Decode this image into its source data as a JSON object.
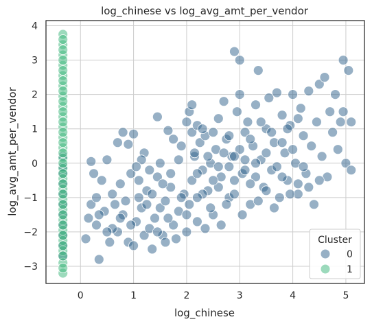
{
  "chart_data": {
    "type": "scatter",
    "title": "log_chinese vs log_avg_amt_per_vendor",
    "xlabel": "log_chinese",
    "ylabel": "log_avg_amt_per_vendor",
    "xlim": [
      -0.65,
      5.35
    ],
    "ylim": [
      -3.5,
      4.15
    ],
    "xticks": [
      "0",
      "1",
      "2",
      "3",
      "4",
      "5"
    ],
    "yticks": [
      "−3",
      "−2",
      "−1",
      "0",
      "1",
      "2",
      "3",
      "4"
    ],
    "grid": true,
    "legend": {
      "title": "Cluster",
      "placement": "lower-right",
      "entries": [
        "0",
        "1"
      ]
    },
    "series": [
      {
        "name": "0",
        "color": "#30618c",
        "points": [
          [
            -0.33,
            -0.3
          ],
          [
            -0.33,
            -0.6
          ],
          [
            -0.33,
            -0.9
          ],
          [
            -0.33,
            -1.2
          ],
          [
            -0.33,
            -1.5
          ],
          [
            -0.33,
            -1.8
          ],
          [
            -0.33,
            -2.1
          ],
          [
            -0.33,
            -2.4
          ],
          [
            -0.33,
            -2.7
          ],
          [
            -0.33,
            -0.1
          ],
          [
            -0.33,
            0.2
          ],
          [
            0.1,
            -2.2
          ],
          [
            0.2,
            -1.2
          ],
          [
            0.3,
            -1.8
          ],
          [
            0.35,
            -2.8
          ],
          [
            0.55,
            -2.3
          ],
          [
            0.7,
            -2.0
          ],
          [
            0.8,
            -1.5
          ],
          [
            0.9,
            -2.3
          ],
          [
            1.0,
            -2.4
          ],
          [
            1.1,
            -1.0
          ],
          [
            1.2,
            -2.1
          ],
          [
            1.3,
            -1.9
          ],
          [
            1.35,
            -2.5
          ],
          [
            1.5,
            -1.3
          ],
          [
            0.3,
            -1.0
          ],
          [
            0.45,
            -1.4
          ],
          [
            0.6,
            -0.9
          ],
          [
            0.75,
            -0.6
          ],
          [
            0.95,
            -0.3
          ],
          [
            1.05,
            -1.7
          ],
          [
            1.25,
            -0.8
          ],
          [
            1.4,
            -1.6
          ],
          [
            1.6,
            -1.1
          ],
          [
            1.75,
            -1.8
          ],
          [
            0.25,
            -0.3
          ],
          [
            0.2,
            0.05
          ],
          [
            0.5,
            0.1
          ],
          [
            0.7,
            0.6
          ],
          [
            0.9,
            0.55
          ],
          [
            1.0,
            0.85
          ],
          [
            0.8,
            0.9
          ],
          [
            1.2,
            0.3
          ],
          [
            0.4,
            -0.5
          ],
          [
            0.6,
            -1.9
          ],
          [
            1.15,
            -1.3
          ],
          [
            1.45,
            -0.4
          ],
          [
            1.55,
            -2.1
          ],
          [
            1.7,
            -0.7
          ],
          [
            1.85,
            -1.4
          ],
          [
            1.95,
            -0.9
          ],
          [
            2.0,
            -2.0
          ],
          [
            2.05,
            -1.2
          ],
          [
            2.1,
            -0.5
          ],
          [
            2.15,
            0.2
          ],
          [
            2.2,
            -1.7
          ],
          [
            1.45,
            1.35
          ],
          [
            1.65,
            0.95
          ],
          [
            1.75,
            0.7
          ],
          [
            1.85,
            0.1
          ],
          [
            1.9,
            0.5
          ],
          [
            2.0,
            1.2
          ],
          [
            2.05,
            1.5
          ],
          [
            2.1,
            1.7
          ],
          [
            2.1,
            0.9
          ],
          [
            2.15,
            0.3
          ],
          [
            2.2,
            1.1
          ],
          [
            2.25,
            0.6
          ],
          [
            2.3,
            -0.2
          ],
          [
            2.35,
            0.8
          ],
          [
            2.4,
            -0.8
          ],
          [
            2.45,
            0.0
          ],
          [
            2.5,
            -1.5
          ],
          [
            2.55,
            0.4
          ],
          [
            2.6,
            1.3
          ],
          [
            2.65,
            -0.4
          ],
          [
            2.7,
            1.8
          ],
          [
            2.75,
            0.7
          ],
          [
            2.8,
            -1.0
          ],
          [
            2.85,
            0.2
          ],
          [
            2.9,
            3.25
          ],
          [
            2.95,
            1.5
          ],
          [
            3.0,
            3.0
          ],
          [
            3.0,
            2.0
          ],
          [
            3.05,
            -0.3
          ],
          [
            3.1,
            0.9
          ],
          [
            3.15,
            1.2
          ],
          [
            3.2,
            -1.2
          ],
          [
            3.25,
            0.5
          ],
          [
            3.3,
            1.7
          ],
          [
            3.35,
            2.7
          ],
          [
            3.4,
            0.1
          ],
          [
            3.45,
            -0.7
          ],
          [
            3.5,
            1.0
          ],
          [
            3.55,
            1.9
          ],
          [
            3.6,
            -0.2
          ],
          [
            3.65,
            0.6
          ],
          [
            3.7,
            2.05
          ],
          [
            3.75,
            -1.0
          ],
          [
            3.8,
            1.4
          ],
          [
            3.85,
            0.3
          ],
          [
            3.9,
            -0.5
          ],
          [
            3.95,
            1.1
          ],
          [
            4.0,
            2.0
          ],
          [
            4.05,
            0.0
          ],
          [
            4.1,
            -0.9
          ],
          [
            4.15,
            1.6
          ],
          [
            4.2,
            0.8
          ],
          [
            4.25,
            -0.3
          ],
          [
            4.3,
            2.1
          ],
          [
            4.35,
            0.5
          ],
          [
            4.4,
            -1.2
          ],
          [
            4.45,
            1.2
          ],
          [
            4.5,
            2.3
          ],
          [
            4.55,
            0.2
          ],
          [
            4.6,
            2.5
          ],
          [
            4.65,
            -0.4
          ],
          [
            4.7,
            1.5
          ],
          [
            4.75,
            0.9
          ],
          [
            4.8,
            2.0
          ],
          [
            4.85,
            0.4
          ],
          [
            4.9,
            1.2
          ],
          [
            4.95,
            3.0
          ],
          [
            5.0,
            0.0
          ],
          [
            5.05,
            2.7
          ],
          [
            5.1,
            1.2
          ],
          [
            5.1,
            -0.2
          ],
          [
            4.95,
            1.5
          ],
          [
            2.3,
            1.0
          ],
          [
            2.4,
            0.2
          ],
          [
            2.5,
            0.9
          ],
          [
            2.6,
            -0.1
          ],
          [
            2.7,
            0.3
          ],
          [
            2.8,
            0.8
          ],
          [
            2.9,
            -0.5
          ],
          [
            3.0,
            0.4
          ],
          [
            3.1,
            0.1
          ],
          [
            3.2,
            0.7
          ],
          [
            3.3,
            -0.4
          ],
          [
            3.4,
            1.2
          ],
          [
            3.5,
            0.3
          ],
          [
            3.6,
            0.9
          ],
          [
            3.7,
            -0.1
          ],
          [
            3.8,
            0.6
          ],
          [
            3.9,
            1.0
          ],
          [
            4.0,
            0.4
          ],
          [
            4.1,
            1.3
          ],
          [
            4.2,
            -0.1
          ],
          [
            2.2,
            -0.3
          ],
          [
            2.3,
            -0.9
          ],
          [
            2.45,
            -1.3
          ],
          [
            2.6,
            -0.7
          ],
          [
            2.75,
            -1.2
          ],
          [
            2.9,
            -0.9
          ],
          [
            3.05,
            -1.5
          ],
          [
            3.2,
            -0.6
          ],
          [
            3.35,
            -1.1
          ],
          [
            3.5,
            -0.8
          ],
          [
            3.65,
            -1.3
          ],
          [
            3.8,
            -0.4
          ],
          [
            3.95,
            -0.9
          ],
          [
            4.1,
            -0.6
          ],
          [
            4.3,
            -0.7
          ],
          [
            4.5,
            -0.5
          ],
          [
            1.1,
            -0.5
          ],
          [
            1.3,
            -0.2
          ],
          [
            1.5,
            0.0
          ],
          [
            1.7,
            -0.3
          ],
          [
            1.9,
            -1.0
          ],
          [
            1.25,
            -1.2
          ],
          [
            1.65,
            -1.6
          ],
          [
            1.8,
            -2.2
          ],
          [
            0.85,
            -1.1
          ],
          [
            0.95,
            -1.8
          ],
          [
            1.35,
            -0.9
          ],
          [
            1.55,
            -0.6
          ],
          [
            1.15,
            0.1
          ],
          [
            0.65,
            -1.2
          ],
          [
            0.5,
            -2.0
          ],
          [
            0.35,
            -1.5
          ],
          [
            0.15,
            -1.6
          ],
          [
            2.0,
            -1.5
          ],
          [
            2.2,
            -1.0
          ],
          [
            2.35,
            -1.9
          ],
          [
            2.5,
            -0.5
          ],
          [
            2.65,
            -1.8
          ],
          [
            2.8,
            -0.1
          ],
          [
            1.05,
            -0.1
          ],
          [
            0.75,
            -1.6
          ],
          [
            1.45,
            -2.0
          ],
          [
            1.6,
            -2.3
          ],
          [
            2.9,
            0.2
          ],
          [
            3.1,
            -0.2
          ],
          [
            3.3,
            0.0
          ]
        ]
      },
      {
        "name": "1",
        "color": "#3ab579",
        "points": [
          [
            -0.33,
            3.75
          ],
          [
            -0.33,
            3.45
          ],
          [
            -0.33,
            3.15
          ],
          [
            -0.33,
            2.85
          ],
          [
            -0.33,
            2.55
          ],
          [
            -0.33,
            2.25
          ],
          [
            -0.33,
            1.95
          ],
          [
            -0.33,
            1.65
          ],
          [
            -0.33,
            1.35
          ],
          [
            -0.33,
            1.05
          ],
          [
            -0.33,
            0.75
          ],
          [
            -0.33,
            0.45
          ],
          [
            -0.33,
            0.15
          ],
          [
            -0.33,
            -0.15
          ],
          [
            -0.33,
            -0.45
          ],
          [
            -0.33,
            -0.75
          ],
          [
            -0.33,
            -1.05
          ],
          [
            -0.33,
            -1.35
          ],
          [
            -0.33,
            -1.65
          ],
          [
            -0.33,
            -1.95
          ],
          [
            -0.33,
            -2.25
          ],
          [
            -0.33,
            -2.55
          ],
          [
            -0.33,
            -2.9
          ],
          [
            -0.33,
            -3.2
          ],
          [
            -0.33,
            3.6
          ],
          [
            -0.33,
            3.3
          ],
          [
            -0.33,
            3.0
          ],
          [
            -0.33,
            2.7
          ],
          [
            -0.33,
            2.4
          ],
          [
            -0.33,
            2.1
          ],
          [
            -0.33,
            1.8
          ],
          [
            -0.33,
            1.5
          ],
          [
            -0.33,
            1.2
          ],
          [
            -0.33,
            0.9
          ],
          [
            -0.33,
            0.6
          ],
          [
            -0.33,
            0.3
          ],
          [
            -0.33,
            0.0
          ],
          [
            -0.33,
            -0.3
          ],
          [
            -0.33,
            -0.6
          ],
          [
            -0.33,
            -0.9
          ],
          [
            -0.33,
            -1.2
          ],
          [
            -0.33,
            -1.5
          ],
          [
            -0.33,
            -1.8
          ],
          [
            -0.33,
            -2.1
          ],
          [
            -0.33,
            -2.4
          ],
          [
            -0.33,
            -2.7
          ],
          [
            -0.33,
            -3.05
          ]
        ]
      }
    ]
  }
}
